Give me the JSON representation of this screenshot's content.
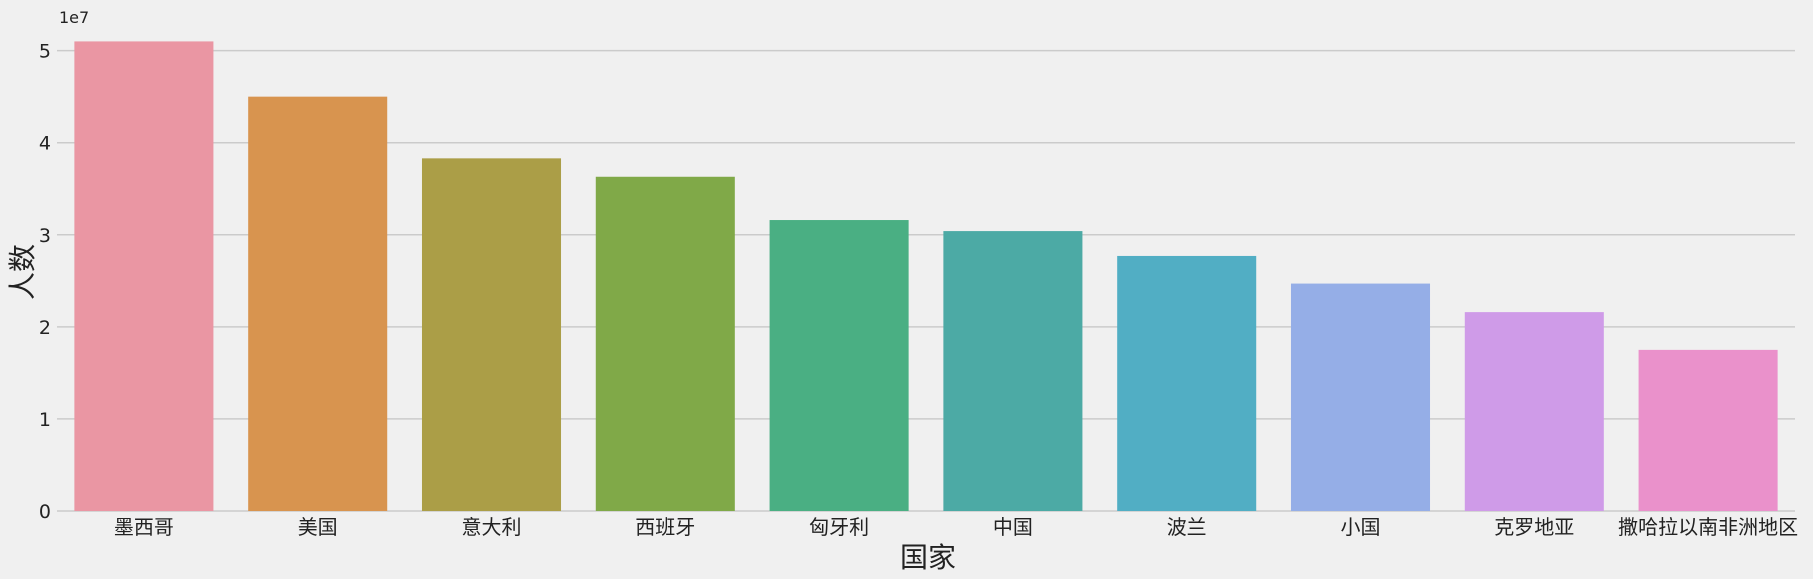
{
  "chart_data": {
    "type": "bar",
    "title": "",
    "xlabel": "国家",
    "ylabel": "人数",
    "scale_offset_label": "1e7",
    "ylim": [
      0,
      53000000
    ],
    "yticks": [
      0,
      10000000,
      20000000,
      30000000,
      40000000,
      50000000
    ],
    "ytick_labels": [
      "0",
      "1",
      "2",
      "3",
      "4",
      "5"
    ],
    "grid": "horizontal",
    "legend": "none",
    "categories": [
      "墨西哥",
      "美国",
      "意大利",
      "西班牙",
      "匈牙利",
      "中国",
      "波兰",
      "小国",
      "克罗地亚",
      "撒哈拉以南非洲地区"
    ],
    "values": [
      51000000,
      45000000,
      38300000,
      36300000,
      31600000,
      30400000,
      27700000,
      24700000,
      21600000,
      17500000
    ],
    "colors": [
      "#ea96a3",
      "#d8944f",
      "#ab9e47",
      "#80a948",
      "#4aaf83",
      "#4caaa5",
      "#51aec4",
      "#95aee7",
      "#cf9be8",
      "#ea91cb"
    ]
  }
}
